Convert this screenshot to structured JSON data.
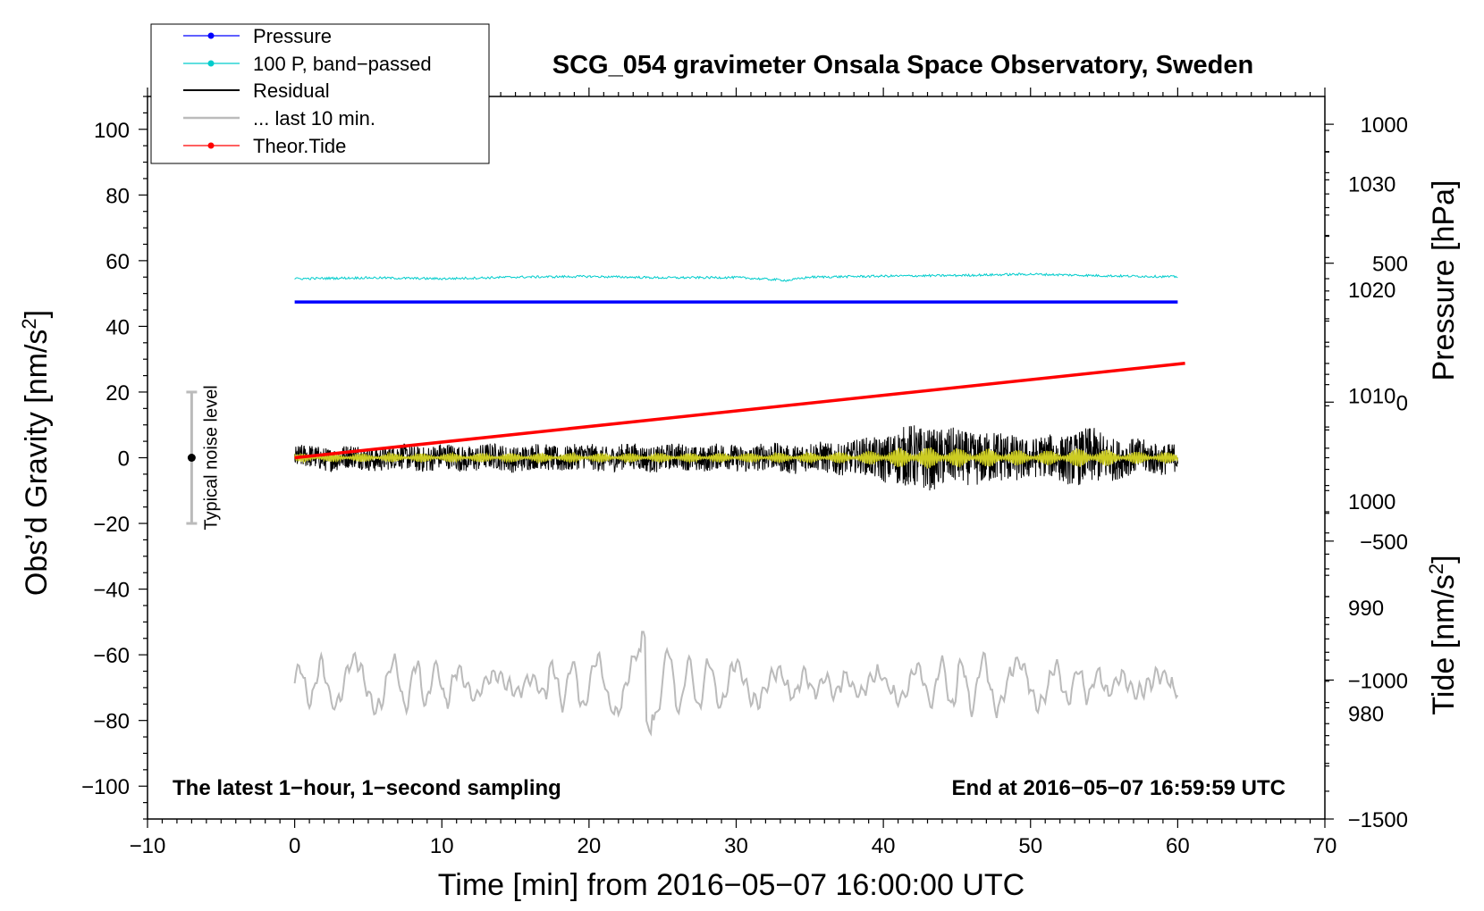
{
  "chart_data": {
    "type": "line",
    "title": "SCG_054 gravimeter Onsala Space Observatory, Sweden",
    "xlabel": "Time [min] from 2016−05−07 16:00:00 UTC",
    "ylabel_left": "Obs’d Gravity [nm/s",
    "ylabel_left_sup": "2",
    "ylabel_left_end": "]",
    "ylabel_right_top": "Pressure [hPa]",
    "ylabel_right_bottom": "Tide [nm/s",
    "ylabel_right_bottom_sup": "2",
    "ylabel_right_bottom_end": "]",
    "xlim": [
      -10,
      70
    ],
    "ylim": [
      -110,
      110
    ],
    "pressure_ylim": [
      970,
      1038.2
    ],
    "tide_ylim": [
      -1500,
      1100
    ],
    "x_ticks": [
      "−10",
      "0",
      "10",
      "20",
      "30",
      "40",
      "50",
      "60",
      "70"
    ],
    "x_tick_values": [
      -10,
      0,
      10,
      20,
      30,
      40,
      50,
      60,
      70
    ],
    "y_ticks": [
      "−100",
      "−80",
      "−60",
      "−40",
      "−20",
      "0",
      "20",
      "40",
      "60",
      "80",
      "100"
    ],
    "y_tick_values": [
      -100,
      -80,
      -60,
      -40,
      -20,
      0,
      20,
      40,
      60,
      80,
      100
    ],
    "pressure_ticks": [
      "980",
      "990",
      "1000",
      "1010",
      "1020",
      "1030"
    ],
    "pressure_tick_values": [
      980,
      990,
      1000,
      1010,
      1020,
      1030
    ],
    "tide_ticks": [
      "−1500",
      "−1000",
      "−500",
      "0",
      "500",
      "1000"
    ],
    "tide_tick_values": [
      -1500,
      -1000,
      -500,
      0,
      500,
      1000
    ],
    "legend": {
      "placement": "top-left",
      "entries": [
        {
          "label": "Pressure",
          "color": "#0000ff",
          "marker": true
        },
        {
          "label": "100 P, band−passed",
          "color": "#00cccc",
          "marker": true
        },
        {
          "label": "Residual",
          "color": "#000000",
          "marker": false
        },
        {
          "label": "... last 10 min.",
          "color": "#bbbbbb",
          "marker": false
        },
        {
          "label": "Theor.Tide",
          "color": "#ff0000",
          "marker": true
        }
      ]
    },
    "annotations": {
      "bottom_left": "The latest 1−hour, 1−second sampling",
      "bottom_right": "End at 2016−05−07 16:59:59 UTC",
      "noise_label": "Typical noise level"
    },
    "noise_bar": {
      "x": -7,
      "center": 0,
      "low": -20,
      "high": 20
    },
    "series": [
      {
        "name": "Pressure",
        "color": "#0000ff",
        "axis": "pressure",
        "x": [
          0,
          60
        ],
        "values": [
          1018.8,
          1018.8
        ]
      },
      {
        "name": "100 P, band−passed",
        "color": "#00cccc",
        "axis": "left",
        "x": [
          0,
          5,
          10,
          15,
          20,
          25,
          30,
          33.5,
          35,
          40,
          45,
          50,
          55,
          60
        ],
        "values": [
          54.5,
          54.8,
          54.5,
          55.0,
          55.2,
          54.8,
          54.9,
          54.0,
          55.0,
          55.3,
          55.5,
          55.9,
          55.4,
          55.1
        ]
      },
      {
        "name": "Residual",
        "color": "#000000",
        "axis": "left",
        "x": [
          0,
          10,
          20,
          30,
          35,
          38,
          40,
          42,
          44,
          46,
          48,
          50,
          52,
          54,
          56,
          58,
          60
        ],
        "amplitude": [
          3.5,
          4,
          4,
          4,
          4.5,
          5,
          7,
          10,
          9,
          8,
          8,
          6,
          7,
          9,
          6,
          5,
          4.5
        ]
      },
      {
        "name": "... last 10 min.",
        "color": "#bbbbbb",
        "axis": "left",
        "x": [
          0,
          60
        ],
        "center": -69,
        "range": [
          -84,
          -53
        ]
      },
      {
        "name": "Theor.Tide",
        "color": "#ff0000",
        "axis": "tide",
        "x": [
          0,
          60.5
        ],
        "values": [
          -200,
          140
        ]
      }
    ]
  }
}
